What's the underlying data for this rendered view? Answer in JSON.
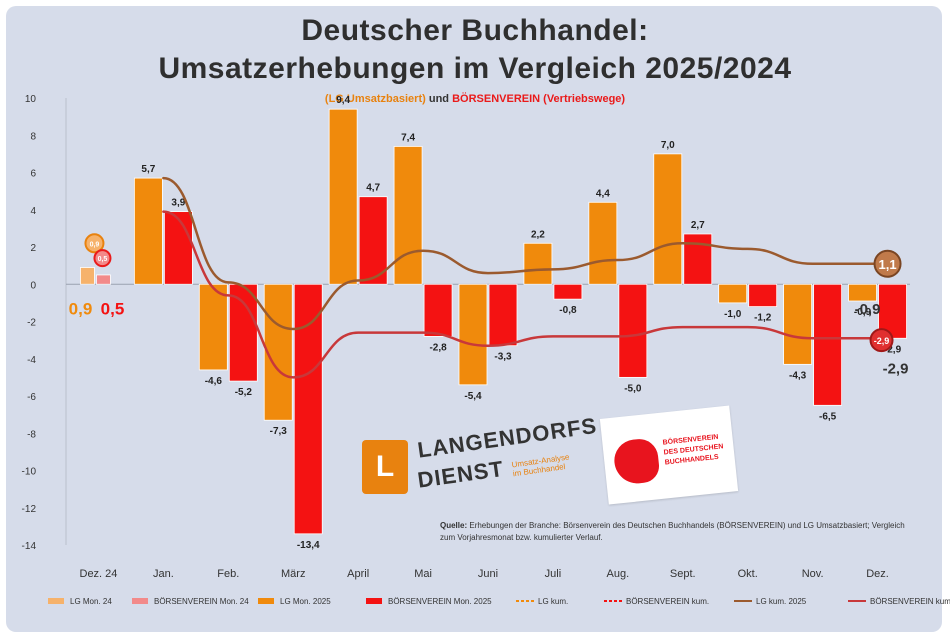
{
  "header": {
    "title_line1": "Deutscher Buchhandel:",
    "title_line2": "Umsatzerhebungen im Vergleich 2025/2024",
    "subtitle_lg": "(LG Umsatzbasiert)",
    "subtitle_mid": "und",
    "subtitle_bv": "BÖRSENVEREIN (Vertriebswege)"
  },
  "logos": {
    "lb_mark": "L",
    "lb_line1": "LANGENDORFS",
    "lb_line2": "DIENST",
    "lb_tagline": "Umsatz-Analyse im Buchhandel",
    "bv_text": "BÖRSENVEREIN DES DEUTSCHEN BUCHHANDELS"
  },
  "source": {
    "label": "Quelle:",
    "text": "Erhebungen der Branche: Börsenverein des Deutschen Buchhandels (BÖRSENVEREIN) und LG Umsatzbasiert; Vergleich zum Vorjahresmonat bzw. kumulierter Verlauf."
  },
  "colors": {
    "lg_bar": "#f08a0c",
    "bv_bar": "#f41212",
    "lg_bar_light": "#f6b26b",
    "bv_bar_light": "#f28a8a",
    "lg_cum_line": "#9b5a2e",
    "bv_cum_line": "#c8383a",
    "background": "#d6dcea"
  },
  "chart_data": {
    "type": "bar",
    "categories": [
      "Dez. 24",
      "Jan.",
      "Feb.",
      "März",
      "April",
      "Mai",
      "Juni",
      "Juli",
      "Aug.",
      "Sept.",
      "Okt.",
      "Nov.",
      "Dez."
    ],
    "ylim": [
      -14,
      10
    ],
    "yticks": [
      10,
      8,
      6,
      4,
      2,
      0,
      -2,
      -4,
      -6,
      -8,
      -10,
      -12,
      -14
    ],
    "series": [
      {
        "name": "LG Mon.",
        "kind": "bar",
        "values": [
          0.9,
          5.7,
          -4.6,
          -7.3,
          9.4,
          7.4,
          -5.4,
          2.2,
          4.4,
          7.0,
          -1.0,
          -4.3,
          -0.9
        ],
        "labels": [
          "0,9",
          "5,7",
          "-4,6",
          "-7,3",
          "9,4",
          "7,4",
          "-5,4",
          "2,2",
          "4,4",
          "7,0",
          "-1,0",
          "-4,3",
          "-0,9"
        ]
      },
      {
        "name": "BÖRSENVEREIN Mon.",
        "kind": "bar",
        "values": [
          0.5,
          3.9,
          -5.2,
          -13.4,
          4.7,
          -2.8,
          -3.3,
          -0.8,
          -5.0,
          2.7,
          -1.2,
          -6.5,
          -2.9
        ],
        "labels": [
          "0,5",
          "3,9",
          "-5,2",
          "-13,4",
          "4,7",
          "-2,8",
          "-3,3",
          "-0,8",
          "-5,0",
          "2,7",
          "-1,2",
          "-6,5",
          "-2,9"
        ]
      },
      {
        "name": "LG kum.",
        "kind": "line",
        "values": [
          null,
          5.7,
          0.1,
          -2.4,
          0.2,
          1.8,
          0.6,
          0.8,
          1.3,
          2.2,
          1.9,
          1.1,
          1.1
        ]
      },
      {
        "name": "BÖRSENVEREIN kum.",
        "kind": "line",
        "values": [
          null,
          3.9,
          -0.6,
          -5.0,
          -2.6,
          -2.6,
          -3.3,
          -2.8,
          -2.8,
          -2.3,
          -2.3,
          -2.9,
          -2.9
        ]
      }
    ],
    "legend": [
      {
        "label": "LG Mon. 24",
        "symbol": "bar-light-orange"
      },
      {
        "label": "BÖRSENVEREIN Mon. 24",
        "symbol": "bar-light-red"
      },
      {
        "label": "LG Mon. 2025",
        "symbol": "bar-orange"
      },
      {
        "label": "BÖRSENVEREIN Mon. 2025",
        "symbol": "bar-red"
      },
      {
        "label": "LG kum.",
        "symbol": "line-orange-dash"
      },
      {
        "label": "BÖRSENVEREIN kum.",
        "symbol": "line-red-dash"
      },
      {
        "label": "LG kum. 2025",
        "symbol": "line-brown"
      },
      {
        "label": "BÖRSENVEREIN kum. 2025",
        "symbol": "line-darkred"
      }
    ],
    "end_labels": {
      "lg_cum": "1,1",
      "bv_cum": "-2,9",
      "dec24_lg": "0,9",
      "dec24_bv": "0,5",
      "dec24_lg_badge": "0,9",
      "dec24_bv_badge": "0,5",
      "dez_lg_badge": "-0,9",
      "dez_bv_badge": "-2,9"
    },
    "legend_placement": "bottom",
    "grid": false
  }
}
